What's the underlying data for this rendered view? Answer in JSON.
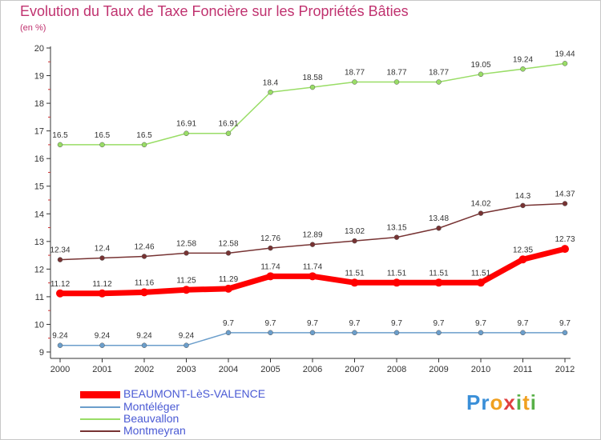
{
  "title": "Evolution du Taux de Taxe Foncière sur les Propriétés Bâties",
  "subtitle": "(en %)",
  "chart_data": {
    "type": "line",
    "title": "Evolution du Taux de Taxe Foncière sur les Propriétés Bâties",
    "ylabel": "(en %)",
    "xlabel": "",
    "x": [
      "2000",
      "2001",
      "2002",
      "2003",
      "2004",
      "2005",
      "2006",
      "2007",
      "2008",
      "2009",
      "2010",
      "2011",
      "2012"
    ],
    "ylim": [
      9,
      20
    ],
    "yticks": [
      "9",
      "10",
      "11",
      "12",
      "13",
      "14",
      "15",
      "16",
      "17",
      "18",
      "19",
      "20"
    ],
    "grid": false,
    "legend_position": "bottom-left",
    "series": [
      {
        "name": "BEAUMONT-LèS-VALENCE",
        "color": "#ff0000",
        "values": [
          11.12,
          11.12,
          11.16,
          11.25,
          11.29,
          11.74,
          11.74,
          11.51,
          11.51,
          11.51,
          11.51,
          12.35,
          12.73
        ]
      },
      {
        "name": "Montéléger",
        "color": "#6b9ecb",
        "values": [
          9.24,
          9.24,
          9.24,
          9.24,
          9.7,
          9.7,
          9.7,
          9.7,
          9.7,
          9.7,
          9.7,
          9.7,
          9.7
        ]
      },
      {
        "name": "Beauvallon",
        "color": "#99dd66",
        "values": [
          16.5,
          16.5,
          16.5,
          16.91,
          16.91,
          18.4,
          18.58,
          18.77,
          18.77,
          18.77,
          19.05,
          19.24,
          19.44
        ]
      },
      {
        "name": "Montmeyran",
        "color": "#773333",
        "values": [
          12.34,
          12.4,
          12.46,
          12.58,
          12.58,
          12.76,
          12.89,
          13.02,
          13.15,
          13.48,
          14.02,
          14.3,
          14.37
        ]
      }
    ]
  },
  "legend": [
    {
      "label": "BEAUMONT-LèS-VALENCE"
    },
    {
      "label": "Montéléger"
    },
    {
      "label": "Beauvallon"
    },
    {
      "label": "Montmeyran"
    }
  ],
  "logo": {
    "letters": [
      "P",
      "r",
      "o",
      "x",
      "i",
      "t",
      "i"
    ],
    "colors": [
      "#3a8fd8",
      "#3a8fd8",
      "#f0a020",
      "#e04040",
      "#58b048",
      "#f0a020",
      "#58b048"
    ]
  }
}
